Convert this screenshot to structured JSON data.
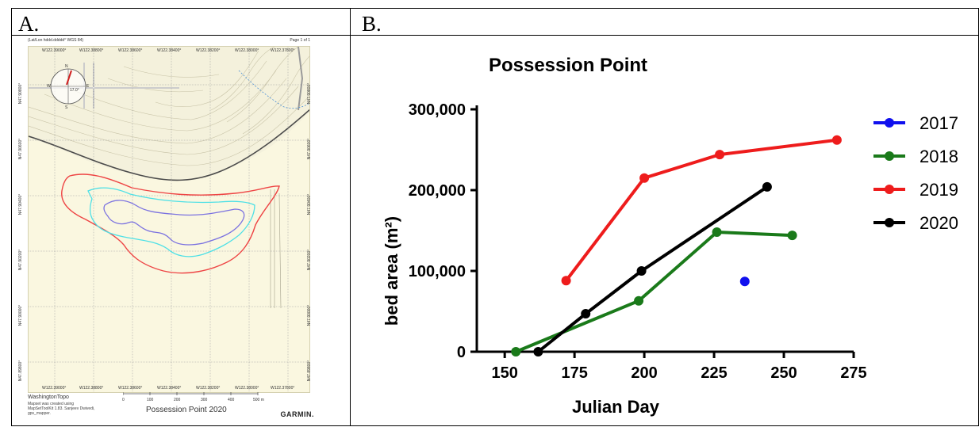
{
  "panels": {
    "a_label": "A.",
    "b_label": "B."
  },
  "map": {
    "header_left": "(Lat/Lon hddd.ddddd° WGS 84)",
    "header_right": "Page 1 of 1",
    "lon_labels": [
      "W122.39000°",
      "W122.38800°",
      "W122.38600°",
      "W122.38400°",
      "W122.38200°",
      "W122.38000°",
      "W122.37800°"
    ],
    "lat_labels": [
      "N47.90800°",
      "N47.90600°",
      "N47.90400°",
      "N47.90200°",
      "N47.90000°",
      "N47.89800°"
    ],
    "compass": {
      "n": "N",
      "s": "S",
      "e": "E",
      "w": "W",
      "value": "17.0°"
    },
    "source_title": "WashingtonTopo",
    "source_line1": "Mapset was created using",
    "source_line2": "MapSetToolKit 1.83. Sanjeev Dwivedi,",
    "source_line3": "gps_mapper.",
    "scale_labels": [
      "0",
      "100",
      "200",
      "300",
      "400",
      "500 m"
    ],
    "title": "Possession Point 2020",
    "brand": "GARMIN."
  },
  "chart_data": {
    "type": "line",
    "title": "Possession Point",
    "xlabel": "Julian Day",
    "ylabel": "bed area (m²)",
    "xlim": [
      140,
      275
    ],
    "ylim": [
      0,
      300000
    ],
    "xticks": [
      150,
      175,
      200,
      225,
      250,
      275
    ],
    "yticks": [
      0,
      100000,
      200000,
      300000
    ],
    "ytick_labels": [
      "0",
      "100,000",
      "200,000",
      "300,000"
    ],
    "legend_position": "right",
    "series": [
      {
        "name": "2017",
        "color": "#1010ee",
        "points": [
          [
            236,
            87000
          ]
        ]
      },
      {
        "name": "2018",
        "color": "#1a7a1a",
        "points": [
          [
            154,
            0
          ],
          [
            198,
            63000
          ],
          [
            226,
            148000
          ],
          [
            253,
            144000
          ]
        ]
      },
      {
        "name": "2019",
        "color": "#ee1c1c",
        "points": [
          [
            172,
            88000
          ],
          [
            200,
            215000
          ],
          [
            227,
            244000
          ],
          [
            269,
            262000
          ]
        ]
      },
      {
        "name": "2020",
        "color": "#000000",
        "points": [
          [
            162,
            0
          ],
          [
            179,
            47000
          ],
          [
            199,
            100000
          ],
          [
            244,
            204000
          ]
        ]
      }
    ]
  }
}
